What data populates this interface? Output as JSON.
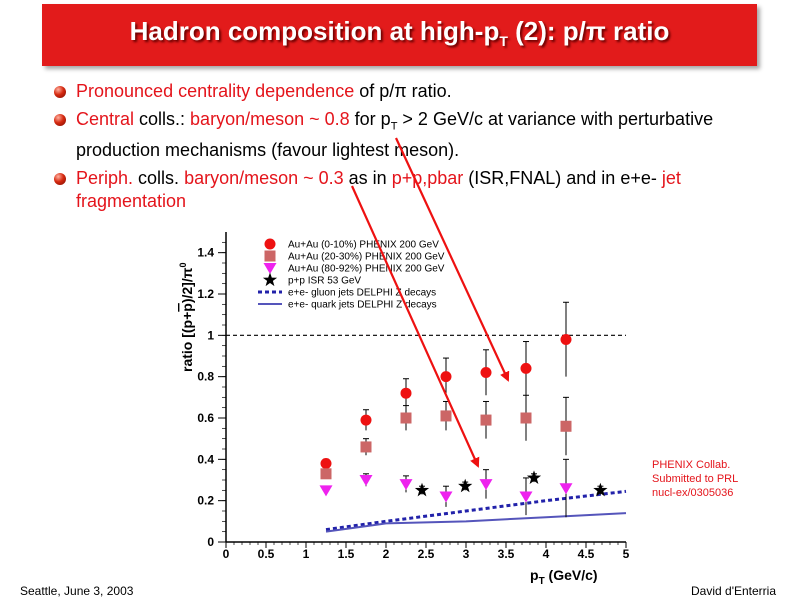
{
  "slide": {
    "title": {
      "main": "Hadron composition at high-p",
      "sub": "T",
      "tail": " (2): p/π ratio"
    },
    "bullets": [
      {
        "a_red": "Pronounced centrality dependence",
        "b": " of p/π ratio."
      },
      {
        "a_red": "Central",
        "b": " colls.: ",
        "c_red": "baryon/meson ~ 0.8",
        "d": " for p",
        "d_sub": "T",
        "e": " > 2 GeV/c at variance with perturbative production mechanisms (favour lightest meson)."
      },
      {
        "a_red": "Periph.",
        "b": " colls. ",
        "c_red": "baryon/meson ~ 0.3",
        "d": " as in ",
        "e_red": "p+p,pbar",
        "f": " (ISR,FNAL) and in e+e- ",
        "g_red": "jet fragmentation"
      }
    ],
    "footer_left": "Seattle, June  3, 2003",
    "footer_right": "David d'Enterria",
    "note_lines": [
      "PHENIX Collab.",
      "Submitted to PRL",
      "nucl-ex/0305036"
    ]
  },
  "chart_data": {
    "type": "scatter",
    "xlabel": "p_T (GeV/c)",
    "ylabel": "ratio [(p+pbar)/2]/π0",
    "xlim": [
      0,
      5
    ],
    "ylim": [
      0,
      1.5
    ],
    "xticks": [
      0,
      0.5,
      1,
      1.5,
      2,
      2.5,
      3,
      3.5,
      4,
      4.5,
      5
    ],
    "xtick_labels": [
      "0",
      "0.5",
      "1",
      "1.5",
      "2",
      "2.5",
      "3",
      "3.5",
      "4",
      "4.5",
      "5"
    ],
    "yticks": [
      0,
      0.2,
      0.4,
      0.6,
      0.8,
      1,
      1.2,
      1.4
    ],
    "ytick_labels": [
      "0",
      "0.2",
      "0.4",
      "0.6",
      "0.8",
      "1",
      "1.2",
      "1.4"
    ],
    "reference_line": 1,
    "series": [
      {
        "name": "Au+Au (0-10%) PHENIX 200 GeV",
        "marker": "circle",
        "color": "#ee1111",
        "x": [
          1.25,
          1.75,
          2.25,
          2.75,
          3.25,
          3.75,
          4.25
        ],
        "y": [
          0.38,
          0.59,
          0.72,
          0.8,
          0.82,
          0.84,
          0.98
        ],
        "err": [
          0.02,
          0.05,
          0.07,
          0.09,
          0.11,
          0.13,
          0.18
        ]
      },
      {
        "name": "Au+Au (20-30%) PHENIX 200 GeV",
        "marker": "square",
        "color": "#cc6666",
        "x": [
          1.25,
          1.75,
          2.25,
          2.75,
          3.25,
          3.75,
          4.25
        ],
        "y": [
          0.33,
          0.46,
          0.6,
          0.61,
          0.59,
          0.6,
          0.56
        ],
        "err": [
          0.02,
          0.04,
          0.06,
          0.07,
          0.09,
          0.11,
          0.14
        ]
      },
      {
        "name": "Au+Au (80-92%) PHENIX 200 GeV",
        "marker": "triangle-down",
        "color": "#ee22ee",
        "x": [
          1.25,
          1.75,
          2.25,
          2.75,
          3.25,
          3.75,
          4.25
        ],
        "y": [
          0.25,
          0.3,
          0.28,
          0.22,
          0.28,
          0.22,
          0.26
        ],
        "err": [
          0.02,
          0.03,
          0.04,
          0.05,
          0.07,
          0.09,
          0.14
        ]
      },
      {
        "name": "p+p ISR 53 GeV",
        "marker": "star",
        "color": "#000000",
        "x": [
          2.45,
          2.99,
          3.85,
          4.68
        ],
        "y": [
          0.25,
          0.27,
          0.31,
          0.25
        ],
        "err": [
          0.02,
          0.02,
          0.02,
          0.02
        ]
      },
      {
        "name": "e+e- gluon jets DELPHI Z decays",
        "line": "dashed",
        "color": "#2222aa",
        "x": [
          1.25,
          2.0,
          3.0,
          4.0,
          5.0
        ],
        "y": [
          0.06,
          0.1,
          0.15,
          0.2,
          0.245
        ]
      },
      {
        "name": "e+e- quark jets DELPHI Z decays",
        "line": "solid",
        "color": "#5555bb",
        "x": [
          1.25,
          2.0,
          3.0,
          4.0,
          5.0
        ],
        "y": [
          0.05,
          0.09,
          0.1,
          0.12,
          0.14
        ]
      }
    ],
    "annotations": [
      {
        "type": "arrow",
        "color": "#ee1111",
        "from": [
          0.8,
          0.8
        ],
        "to": [
          3.7,
          0.85
        ]
      },
      {
        "type": "arrow",
        "color": "#ee1111",
        "from": [
          0.3,
          0.3
        ],
        "to": [
          3.25,
          0.3
        ]
      }
    ]
  },
  "colors": {
    "title_bg": "#e21b1b",
    "accent_red": "#e4141b"
  }
}
